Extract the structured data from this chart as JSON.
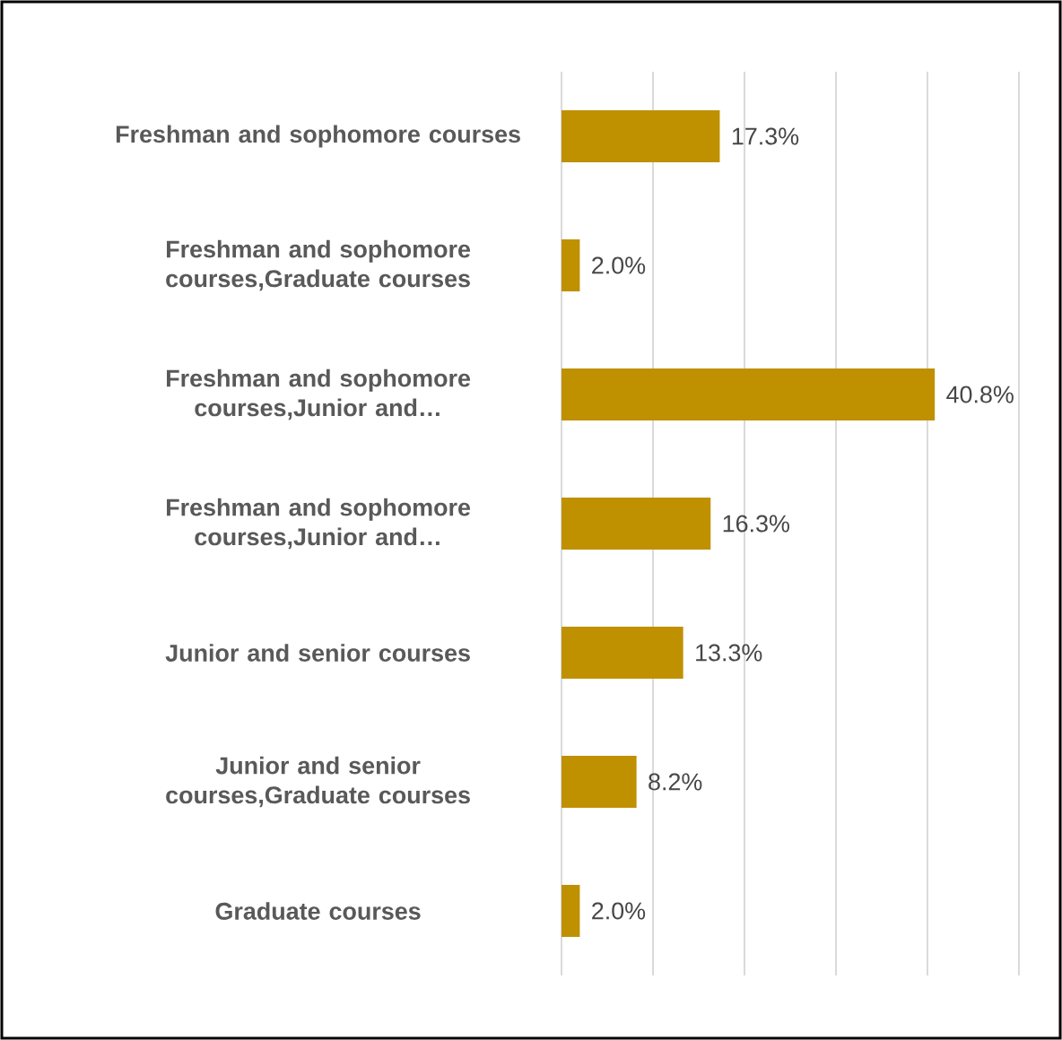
{
  "chart_data": {
    "type": "bar",
    "orientation": "horizontal",
    "categories": [
      "Freshman and sophomore courses",
      "Freshman and sophomore courses,Graduate courses",
      "Freshman and sophomore courses,Junior and…",
      "Freshman and sophomore courses,Junior and…",
      "Junior and senior courses",
      "Junior and senior courses,Graduate courses",
      "Graduate courses"
    ],
    "values": [
      17.3,
      2.0,
      40.8,
      16.3,
      13.3,
      8.2,
      2.0
    ],
    "value_labels": [
      "17.3%",
      "2.0%",
      "40.8%",
      "16.3%",
      "13.3%",
      "8.2%",
      "2.0%"
    ],
    "color": "#bf9000",
    "xlim": [
      0,
      50
    ],
    "xticks": [
      {
        "value": 0,
        "label": null
      },
      {
        "value": 10,
        "label": null
      },
      {
        "value": 20,
        "label": null
      },
      {
        "value": 30,
        "label": null
      },
      {
        "value": 40,
        "label": null
      },
      {
        "value": 50,
        "label": null
      }
    ],
    "grid": "x",
    "tick_labels": "y"
  }
}
